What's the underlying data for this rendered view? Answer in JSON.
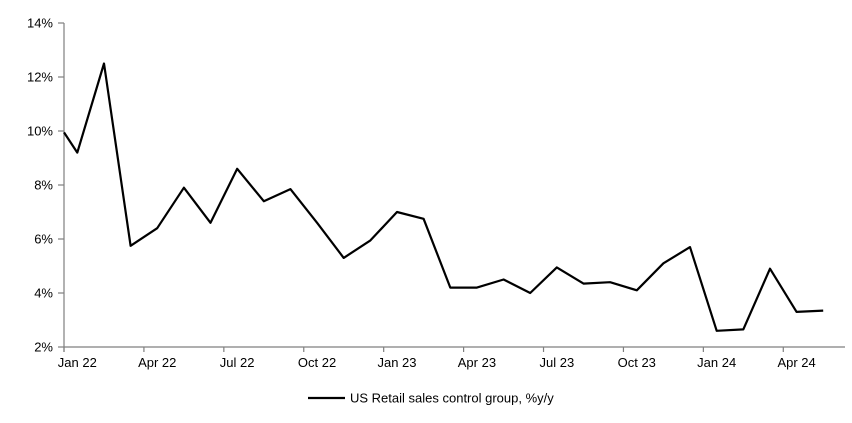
{
  "chart_data": {
    "type": "line",
    "title": "",
    "categories": [
      "Jan 22",
      "Feb 22",
      "Mar 22",
      "Apr 22",
      "May 22",
      "Jun 22",
      "Jul 22",
      "Aug 22",
      "Sep 22",
      "Oct 22",
      "Nov 22",
      "Dec 22",
      "Jan 23",
      "Feb 23",
      "Mar 23",
      "Apr 23",
      "May 23",
      "Jun 23",
      "Jul 23",
      "Aug 23",
      "Sep 23",
      "Oct 23",
      "Nov 23",
      "Dec 23",
      "Jan 24",
      "Feb 24",
      "Mar 24",
      "Apr 24",
      "May 24"
    ],
    "series": [
      {
        "name": "US Retail sales control group, %y/y",
        "color": "#000000",
        "values": [
          9.2,
          12.5,
          5.75,
          6.4,
          7.9,
          6.6,
          8.6,
          7.4,
          7.85,
          6.6,
          5.3,
          5.95,
          7.0,
          6.75,
          4.2,
          4.2,
          4.5,
          4.0,
          4.95,
          4.35,
          4.4,
          4.1,
          5.1,
          5.7,
          2.6,
          2.65,
          4.9,
          3.3,
          3.35
        ]
      }
    ],
    "left_edge_clipped_start_value": 9.95,
    "x_axis": {
      "tick_labels": [
        "Jan 22",
        "Apr 22",
        "Jul 22",
        "Oct 22",
        "Jan 23",
        "Apr 23",
        "Jul 23",
        "Oct 23",
        "Jan 24",
        "Apr 24"
      ],
      "label_every_n_months": 3
    },
    "y_axis": {
      "min": 2,
      "max": 14,
      "step": 2,
      "tick_labels": [
        "2%",
        "4%",
        "6%",
        "8%",
        "10%",
        "12%",
        "14%"
      ]
    },
    "legend": {
      "position": "bottom",
      "label": "US Retail sales control group, %y/y"
    },
    "grid": false,
    "colors": {
      "line": "#000000",
      "axis": "#7f7f7f",
      "text": "#000000",
      "background": "#ffffff"
    }
  }
}
